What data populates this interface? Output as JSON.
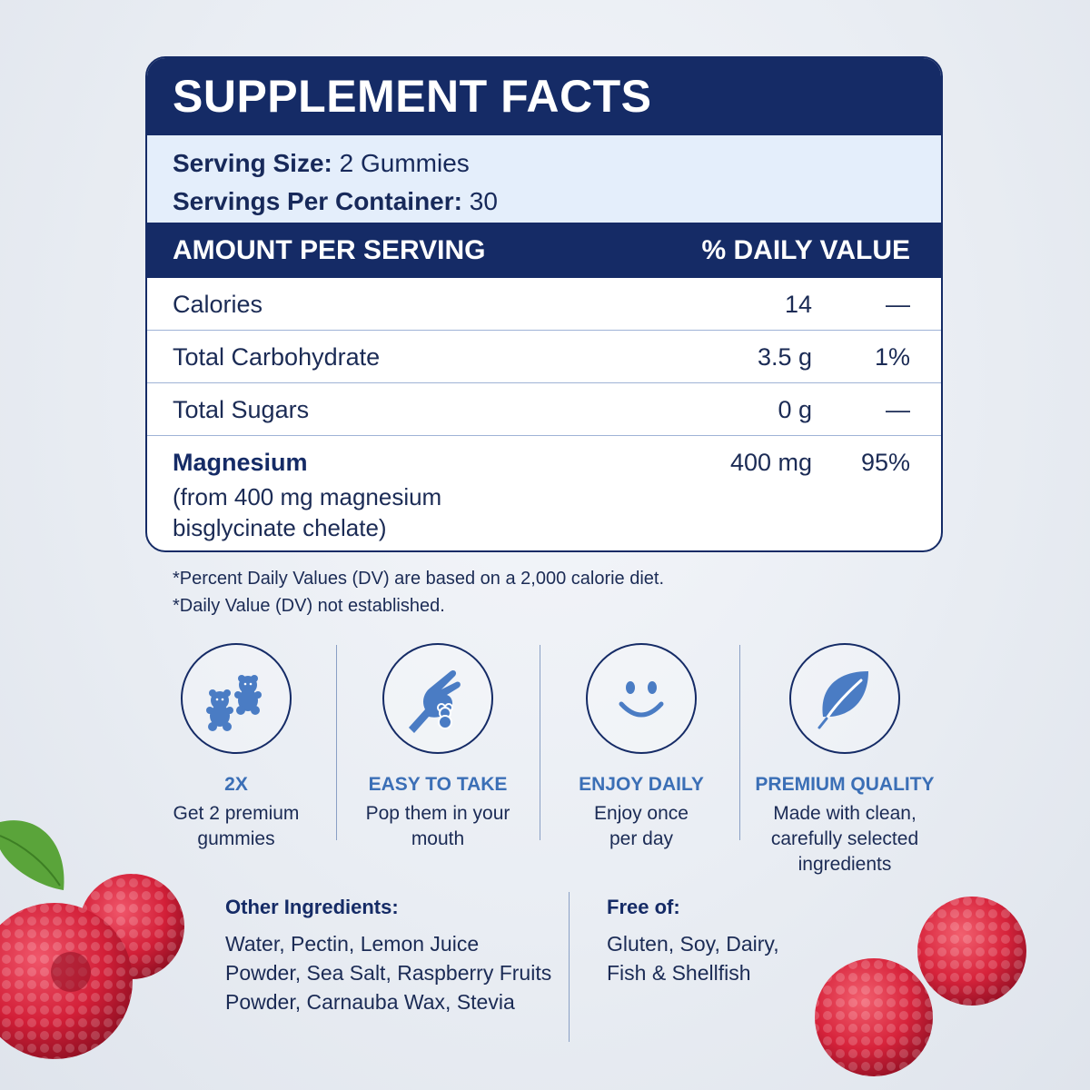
{
  "facts": {
    "title": "SUPPLEMENT FACTS",
    "serving_size_label": "Serving Size:",
    "serving_size_value": "2 Gummies",
    "servings_per_container_label": "Servings Per Container:",
    "servings_per_container_value": "30",
    "header_amount": "AMOUNT PER SERVING",
    "header_dv": "% DAILY VALUE",
    "rows": [
      {
        "name": "Calories",
        "amount": "14",
        "dv": "—"
      },
      {
        "name": "Total Carbohydrate",
        "amount": "3.5 g",
        "dv": "1%"
      },
      {
        "name": "Total Sugars",
        "amount": "0 g",
        "dv": "—"
      },
      {
        "name": "Magnesium",
        "sub": "(from 400 mg magnesium bisglycinate chelate)",
        "amount": "400 mg",
        "dv": "95%"
      }
    ]
  },
  "notes": [
    "*Percent Daily Values (DV) are based on a 2,000 calorie diet.",
    "*Daily Value (DV) not established."
  ],
  "features": [
    {
      "icon": "gummy-bears-icon",
      "title": "2X",
      "text": "Get 2 premium gummies"
    },
    {
      "icon": "hand-gummy-icon",
      "title": "EASY TO TAKE",
      "text": "Pop them in your mouth"
    },
    {
      "icon": "smiley-icon",
      "title": "ENJOY DAILY",
      "text": "Enjoy once per day"
    },
    {
      "icon": "leaf-icon",
      "title": "PREMIUM QUALITY",
      "text": "Made with clean, carefully selected ingredients"
    }
  ],
  "other_ingredients": {
    "title": "Other Ingredients:",
    "text": "Water, Pectin, Lemon Juice Powder, Sea Salt, Raspberry Fruits Powder, Carnauba Wax, Stevia"
  },
  "free_of": {
    "title": "Free of:",
    "text": "Gluten, Soy, Dairy, Fish & Shellfish"
  },
  "colors": {
    "navy": "#152b66",
    "accent_blue": "#3b6fb6",
    "icon_fill": "#4a7cc4",
    "light_panel": "#e4eefb",
    "raspberry": "#d9243c"
  }
}
